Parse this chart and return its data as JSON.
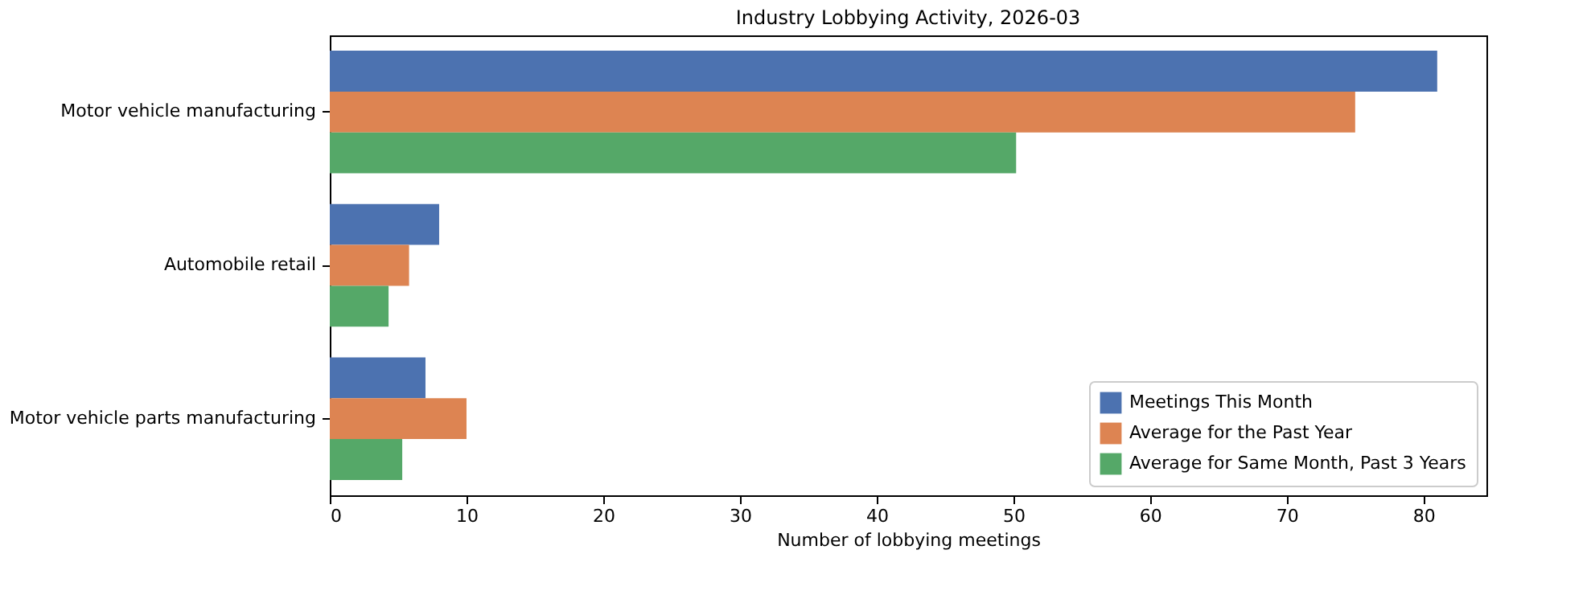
{
  "chart_data": {
    "type": "bar",
    "orientation": "horizontal",
    "title": "Industry Lobbying Activity, 2026-03",
    "xlabel": "Number of lobbying meetings",
    "categories": [
      "Motor vehicle manufacturing",
      "Automobile retail",
      "Motor vehicle parts manufacturing"
    ],
    "series": [
      {
        "name": "Meetings This Month",
        "color": "#4c72b0",
        "values": [
          81,
          8,
          7
        ]
      },
      {
        "name": "Average for the Past Year",
        "color": "#dd8452",
        "values": [
          75,
          5.8,
          10
        ]
      },
      {
        "name": "Average for Same Month, Past 3 Years",
        "color": "#55a868",
        "values": [
          50.2,
          4.3,
          5.3
        ]
      }
    ],
    "xlim": [
      0,
      84.6
    ],
    "xticks": [
      0,
      10,
      20,
      30,
      40,
      50,
      60,
      70,
      80
    ],
    "grid": false,
    "legend": "bottom right"
  }
}
